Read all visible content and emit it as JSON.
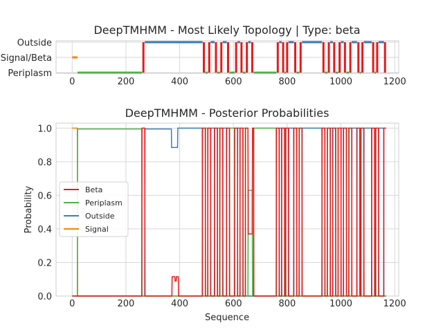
{
  "chart_data": [
    {
      "type": "line",
      "title": "DeepTMHMM - Most Likely Topology | Type: beta",
      "xlabel": "",
      "ylabel": "",
      "xlim": [
        -60,
        1215
      ],
      "xticks": [
        0,
        200,
        400,
        600,
        800,
        1000,
        1200
      ],
      "categories": [
        "Outside",
        "Signal/Beta",
        "Periplasm"
      ],
      "grid": true,
      "colors": {
        "beta": "#e41a1c",
        "periplasm": "#4daf4a",
        "outside": "#377eb8",
        "signal": "#ff7f00"
      },
      "signal_segment": [
        0,
        20
      ],
      "periplasm_segment": [
        20,
        260
      ],
      "beta_segments": [
        [
          260,
          270
        ],
        [
          485,
          495
        ],
        [
          505,
          515
        ],
        [
          530,
          540
        ],
        [
          550,
          560
        ],
        [
          575,
          585
        ],
        [
          605,
          615
        ],
        [
          625,
          635
        ],
        [
          645,
          655
        ],
        [
          665,
          675
        ],
        [
          760,
          770
        ],
        [
          780,
          790
        ],
        [
          795,
          805
        ],
        [
          825,
          835
        ],
        [
          845,
          855
        ],
        [
          930,
          940
        ],
        [
          950,
          960
        ],
        [
          970,
          980
        ],
        [
          990,
          1000
        ],
        [
          1010,
          1020
        ],
        [
          1030,
          1040
        ],
        [
          1060,
          1070
        ],
        [
          1075,
          1085
        ],
        [
          1115,
          1125
        ],
        [
          1130,
          1140
        ],
        [
          1160,
          1168
        ]
      ]
    },
    {
      "type": "line",
      "title": "DeepTMHMM - Posterior Probabilities",
      "xlabel": "Sequence",
      "ylabel": "Probability",
      "xlim": [
        -60,
        1215
      ],
      "ylim": [
        0,
        1.03
      ],
      "xticks": [
        0,
        200,
        400,
        600,
        800,
        1000,
        1200
      ],
      "yticks": [
        "0.0",
        "0.2",
        "0.4",
        "0.6",
        "0.8",
        "1.0"
      ],
      "ytick_values": [
        0,
        0.2,
        0.4,
        0.6,
        0.8,
        1.0
      ],
      "legend": [
        "Beta",
        "Periplasm",
        "Outside",
        "Signal"
      ],
      "legend_position": "center-left",
      "grid": true,
      "series": [
        {
          "name": "Beta",
          "color": "#e41a1c"
        },
        {
          "name": "Periplasm",
          "color": "#4daf4a"
        },
        {
          "name": "Outside",
          "color": "#377eb8"
        },
        {
          "name": "Signal",
          "color": "#ff7f00"
        }
      ]
    }
  ]
}
